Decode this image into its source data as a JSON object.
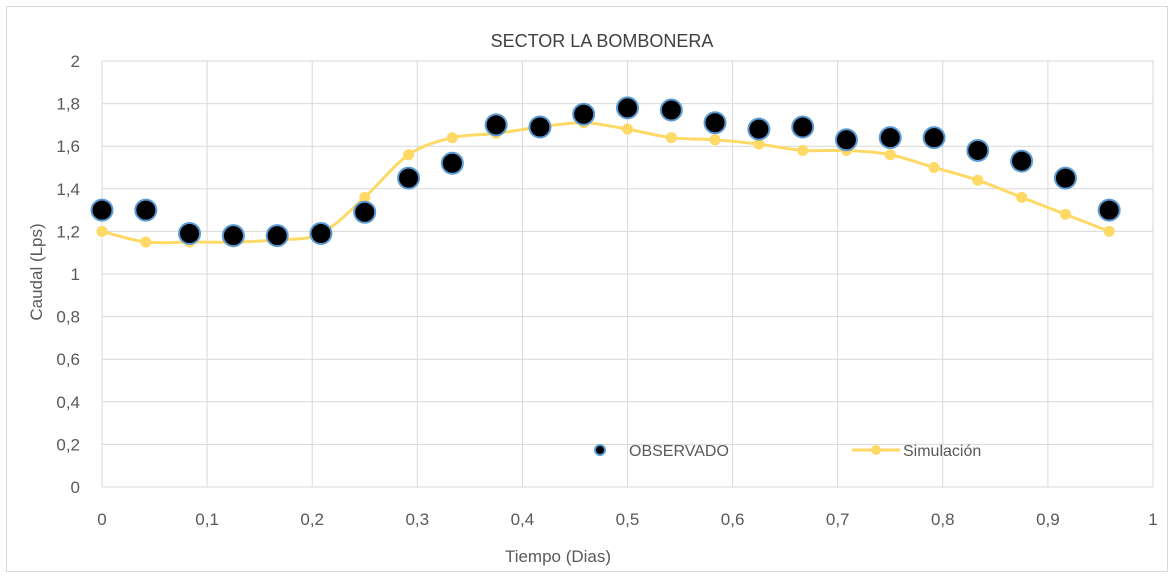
{
  "chart_data": {
    "type": "scatter",
    "title": "SECTOR LA BOMBONERA",
    "xlabel": "Tiempo (Dias)",
    "ylabel": "Caudal (Lps)",
    "xlim": [
      0,
      1
    ],
    "ylim": [
      0,
      2
    ],
    "x_ticks": [
      "0",
      "0,1",
      "0,2",
      "0,3",
      "0,4",
      "0,5",
      "0,6",
      "0,7",
      "0,8",
      "0,9",
      "1"
    ],
    "y_ticks": [
      "0",
      "0,2",
      "0,4",
      "0,6",
      "0,8",
      "1",
      "1,2",
      "1,4",
      "1,6",
      "1,8",
      "2"
    ],
    "grid": "vertical and horizontal major gridlines",
    "legend_position": "bottom-center, inside plot",
    "series": [
      {
        "name": "OBSERVADO",
        "style": "markers",
        "marker_color": "#000000",
        "marker_edge_color": "#5b9bd5",
        "x": [
          0,
          0.0417,
          0.0833,
          0.125,
          0.1667,
          0.2083,
          0.25,
          0.2917,
          0.3333,
          0.375,
          0.4167,
          0.4583,
          0.5,
          0.5417,
          0.5833,
          0.625,
          0.6667,
          0.7083,
          0.75,
          0.7917,
          0.8333,
          0.875,
          0.9167,
          0.9583
        ],
        "y": [
          1.3,
          1.3,
          1.19,
          1.18,
          1.18,
          1.19,
          1.29,
          1.45,
          1.52,
          1.7,
          1.69,
          1.75,
          1.78,
          1.77,
          1.71,
          1.68,
          1.69,
          1.63,
          1.64,
          1.64,
          1.58,
          1.53,
          1.45,
          1.3
        ]
      },
      {
        "name": "Simulación",
        "style": "smooth line with markers",
        "color": "#ffd966",
        "x": [
          0,
          0.0417,
          0.0833,
          0.125,
          0.1667,
          0.2083,
          0.25,
          0.2917,
          0.3333,
          0.375,
          0.4167,
          0.4583,
          0.5,
          0.5417,
          0.5833,
          0.625,
          0.6667,
          0.7083,
          0.75,
          0.7917,
          0.8333,
          0.875,
          0.9167,
          0.9583
        ],
        "y": [
          1.2,
          1.15,
          1.15,
          1.15,
          1.16,
          1.19,
          1.36,
          1.56,
          1.64,
          1.66,
          1.69,
          1.71,
          1.68,
          1.64,
          1.63,
          1.61,
          1.58,
          1.58,
          1.56,
          1.5,
          1.44,
          1.36,
          1.28,
          1.2
        ]
      }
    ]
  }
}
